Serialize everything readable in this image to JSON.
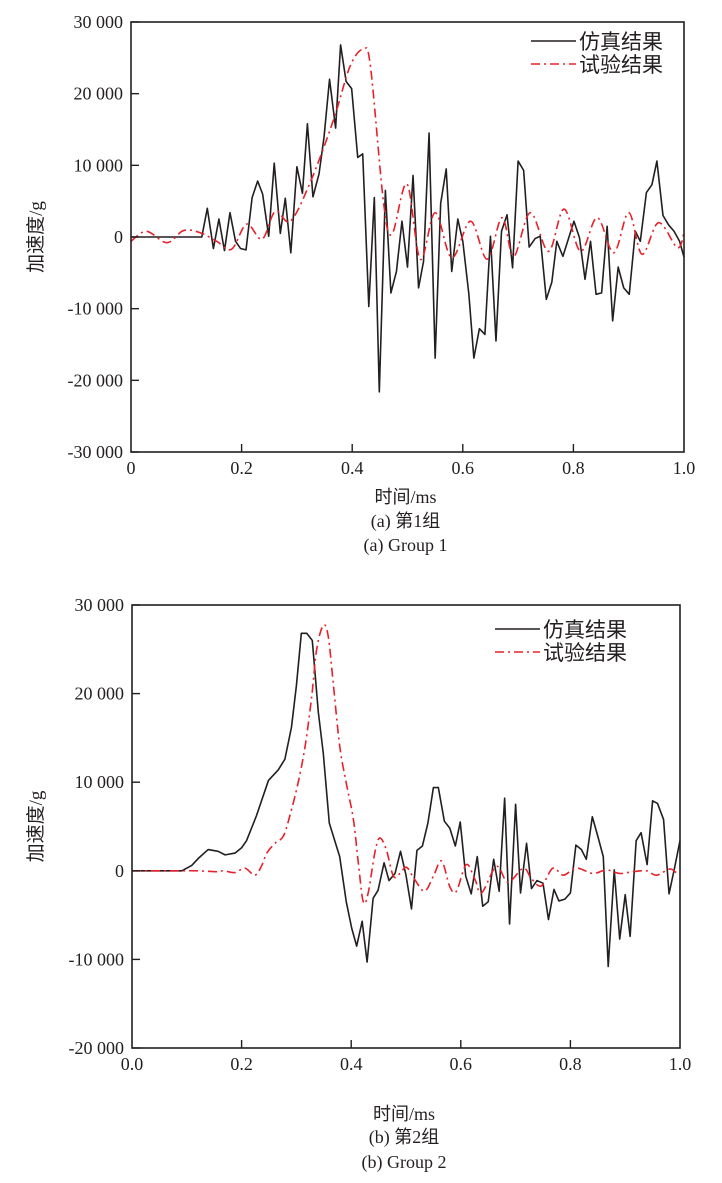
{
  "chart_data": [
    {
      "type": "line",
      "xlabel": "时间/ms",
      "ylabel": "加速度/g",
      "caption_cn": "(a) 第1组",
      "caption_en": "(a) Group 1",
      "xlim": [
        0,
        1.0
      ],
      "ylim": [
        -30000,
        30000
      ],
      "xticks": [
        "0",
        "0.2",
        "0.4",
        "0.6",
        "0.8",
        "1.0"
      ],
      "xtick_values": [
        0,
        0.2,
        0.4,
        0.6,
        0.8,
        1.0
      ],
      "yticks": [
        "30 000",
        "20 000",
        "10 000",
        "0",
        "-10 000",
        "-20 000",
        "-30 000"
      ],
      "ytick_values": [
        30000,
        20000,
        10000,
        0,
        -10000,
        -20000,
        -30000
      ],
      "grid": false,
      "legend_position": "top-right",
      "series": [
        {
          "name": "仿真结果",
          "color": "#231f20",
          "style": "solid",
          "x": [
            0,
            0.128,
            0.138,
            0.149,
            0.159,
            0.169,
            0.179,
            0.189,
            0.198,
            0.208,
            0.219,
            0.229,
            0.238,
            0.249,
            0.259,
            0.27,
            0.279,
            0.289,
            0.3,
            0.31,
            0.319,
            0.329,
            0.34,
            0.349,
            0.359,
            0.37,
            0.379,
            0.389,
            0.399,
            0.41,
            0.419,
            0.43,
            0.44,
            0.449,
            0.46,
            0.47,
            0.48,
            0.49,
            0.5,
            0.51,
            0.52,
            0.529,
            0.539,
            0.55,
            0.56,
            0.57,
            0.58,
            0.591,
            0.6,
            0.611,
            0.62,
            0.63,
            0.64,
            0.65,
            0.66,
            0.67,
            0.68,
            0.69,
            0.7,
            0.71,
            0.72,
            0.731,
            0.74,
            0.751,
            0.761,
            0.77,
            0.781,
            0.801,
            0.811,
            0.821,
            0.831,
            0.841,
            0.851,
            0.861,
            0.871,
            0.881,
            0.891,
            0.901,
            0.912,
            0.921,
            0.932,
            0.942,
            0.951,
            0.962,
            0.972,
            0.982,
            0.992,
            1.0
          ],
          "y": [
            0,
            0,
            4000,
            -1600,
            2500,
            -1900,
            3400,
            -600,
            -1600,
            -1800,
            5500,
            7800,
            6000,
            100,
            10300,
            500,
            5400,
            -2200,
            9800,
            6100,
            15800,
            5600,
            8800,
            13900,
            22000,
            15200,
            26800,
            21700,
            20700,
            11100,
            11600,
            -9700,
            5500,
            -21600,
            6500,
            -7800,
            -4800,
            2200,
            -4200,
            8600,
            -7100,
            -3400,
            14500,
            -16900,
            4700,
            9500,
            -4800,
            2500,
            -600,
            -8000,
            -16900,
            -12800,
            -13600,
            100,
            -14500,
            800,
            3100,
            -4300,
            10600,
            9300,
            -1400,
            -200,
            100,
            -8700,
            -6300,
            -600,
            -2700,
            2200,
            -100,
            -5900,
            -600,
            -8000,
            -7800,
            1500,
            -11700,
            -4200,
            -7100,
            -8000,
            800,
            -600,
            6200,
            7300,
            10600,
            3000,
            1700,
            800,
            -600,
            -2800
          ]
        },
        {
          "name": "试验结果",
          "color": "#e8202a",
          "style": "dash-dot",
          "x": [
            0,
            0.028,
            0.065,
            0.095,
            0.125,
            0.155,
            0.182,
            0.209,
            0.237,
            0.261,
            0.288,
            0.324,
            0.366,
            0.396,
            0.42,
            0.433,
            0.457,
            0.472,
            0.499,
            0.523,
            0.55,
            0.58,
            0.614,
            0.644,
            0.671,
            0.692,
            0.722,
            0.755,
            0.783,
            0.813,
            0.843,
            0.873,
            0.9,
            0.924,
            0.954,
            0.988,
            1.0
          ],
          "y": [
            -600,
            800,
            -800,
            900,
            600,
            -600,
            -1700,
            1800,
            -300,
            3600,
            2200,
            7600,
            16300,
            23800,
            26200,
            23800,
            4600,
            400,
            7400,
            -3100,
            3400,
            -2900,
            2200,
            -3100,
            2700,
            -2700,
            3400,
            -2000,
            3900,
            -2000,
            2700,
            -2200,
            3400,
            -2400,
            2000,
            -1500,
            600
          ]
        }
      ]
    },
    {
      "type": "line",
      "xlabel": "时间/ms",
      "ylabel": "加速度/g",
      "caption_cn": "(b) 第2组",
      "caption_en": "(b) Group 2",
      "xlim": [
        0,
        1.0
      ],
      "ylim": [
        -20000,
        30000
      ],
      "xticks": [
        "0.0",
        "0.2",
        "0.4",
        "0.6",
        "0.8",
        "1.0"
      ],
      "xtick_values": [
        0,
        0.2,
        0.4,
        0.6,
        0.8,
        1.0
      ],
      "yticks": [
        "30 000",
        "20 000",
        "10 000",
        "0",
        "-10 000",
        "-20 000"
      ],
      "ytick_values": [
        30000,
        20000,
        10000,
        0,
        -10000,
        -20000
      ],
      "grid": false,
      "legend_position": "top-right",
      "series": [
        {
          "name": "仿真结果",
          "color": "#231f20",
          "style": "solid",
          "x": [
            0,
            0.091,
            0.109,
            0.121,
            0.139,
            0.157,
            0.17,
            0.188,
            0.2,
            0.209,
            0.227,
            0.249,
            0.267,
            0.279,
            0.291,
            0.3,
            0.309,
            0.319,
            0.329,
            0.34,
            0.349,
            0.36,
            0.379,
            0.391,
            0.401,
            0.41,
            0.42,
            0.429,
            0.44,
            0.449,
            0.46,
            0.469,
            0.48,
            0.49,
            0.5,
            0.51,
            0.52,
            0.53,
            0.54,
            0.55,
            0.559,
            0.57,
            0.58,
            0.59,
            0.599,
            0.609,
            0.619,
            0.63,
            0.64,
            0.65,
            0.66,
            0.67,
            0.68,
            0.689,
            0.7,
            0.709,
            0.72,
            0.729,
            0.739,
            0.75,
            0.76,
            0.77,
            0.779,
            0.79,
            0.8,
            0.81,
            0.82,
            0.829,
            0.84,
            0.85,
            0.86,
            0.869,
            0.88,
            0.89,
            0.9,
            0.909,
            0.92,
            0.929,
            0.94,
            0.95,
            0.959,
            0.97,
            0.98,
            0.99,
            1.0
          ],
          "y": [
            0,
            0,
            600,
            1400,
            2400,
            2200,
            1800,
            2000,
            2600,
            3400,
            6200,
            10200,
            11400,
            12600,
            16200,
            20900,
            26800,
            26800,
            26000,
            17900,
            13300,
            5400,
            1600,
            -3500,
            -6500,
            -8500,
            -5700,
            -10300,
            -3100,
            -2200,
            900,
            -1100,
            -300,
            2200,
            -500,
            -4300,
            2300,
            2800,
            5400,
            9400,
            9400,
            5600,
            4800,
            2800,
            5500,
            -600,
            -2600,
            1600,
            -4000,
            -3500,
            1300,
            -2300,
            8200,
            -6000,
            7500,
            -2500,
            3100,
            -2000,
            -1100,
            -1400,
            -5500,
            -2100,
            -3400,
            -3200,
            -2500,
            2900,
            2400,
            1300,
            6100,
            3900,
            1600,
            -10800,
            100,
            -7700,
            -2700,
            -7400,
            3400,
            4300,
            700,
            7900,
            7600,
            5800,
            -2600,
            300,
            3400
          ]
        },
        {
          "name": "试验结果",
          "color": "#e8202a",
          "style": "dash-dot",
          "x": [
            0,
            0.088,
            0.118,
            0.154,
            0.167,
            0.188,
            0.206,
            0.224,
            0.236,
            0.246,
            0.261,
            0.276,
            0.288,
            0.303,
            0.316,
            0.328,
            0.337,
            0.349,
            0.358,
            0.367,
            0.379,
            0.391,
            0.404,
            0.413,
            0.422,
            0.431,
            0.443,
            0.452,
            0.464,
            0.477,
            0.489,
            0.501,
            0.516,
            0.534,
            0.55,
            0.565,
            0.58,
            0.592,
            0.61,
            0.626,
            0.638,
            0.665,
            0.686,
            0.714,
            0.729,
            0.747,
            0.768,
            0.787,
            0.811,
            0.841,
            0.866,
            0.89,
            0.914,
            0.939,
            0.957,
            0.981,
            0.993
          ],
          "y": [
            0,
            0,
            0,
            -100,
            0,
            -200,
            300,
            -500,
            500,
            2000,
            3100,
            3900,
            6200,
            9900,
            14100,
            19700,
            25000,
            27700,
            26500,
            21300,
            14100,
            9900,
            5800,
            900,
            -3500,
            -2500,
            2000,
            3700,
            2400,
            -600,
            -300,
            400,
            -1000,
            -2300,
            -600,
            1100,
            -1800,
            -2300,
            700,
            -1000,
            -2500,
            500,
            -1300,
            300,
            -900,
            -1700,
            300,
            -500,
            300,
            -300,
            100,
            -300,
            -100,
            0,
            -500,
            200,
            -200
          ]
        }
      ]
    }
  ]
}
